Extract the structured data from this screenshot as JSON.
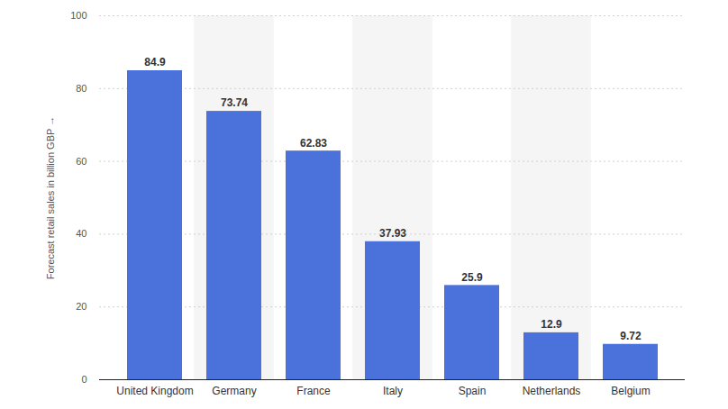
{
  "chart_data": {
    "type": "bar",
    "y_label": "Forecast retail sales in billion GBP",
    "categories": [
      "United Kingdom",
      "Germany",
      "France",
      "Italy",
      "Spain",
      "Netherlands",
      "Belgium"
    ],
    "values": [
      84.9,
      73.74,
      62.83,
      37.93,
      25.9,
      12.9,
      9.72
    ],
    "color": "#4a72da",
    "ylim": [
      0,
      100
    ],
    "yticks": [
      0,
      20,
      40,
      60,
      80,
      100
    ],
    "grid": true,
    "data_labels": true
  }
}
